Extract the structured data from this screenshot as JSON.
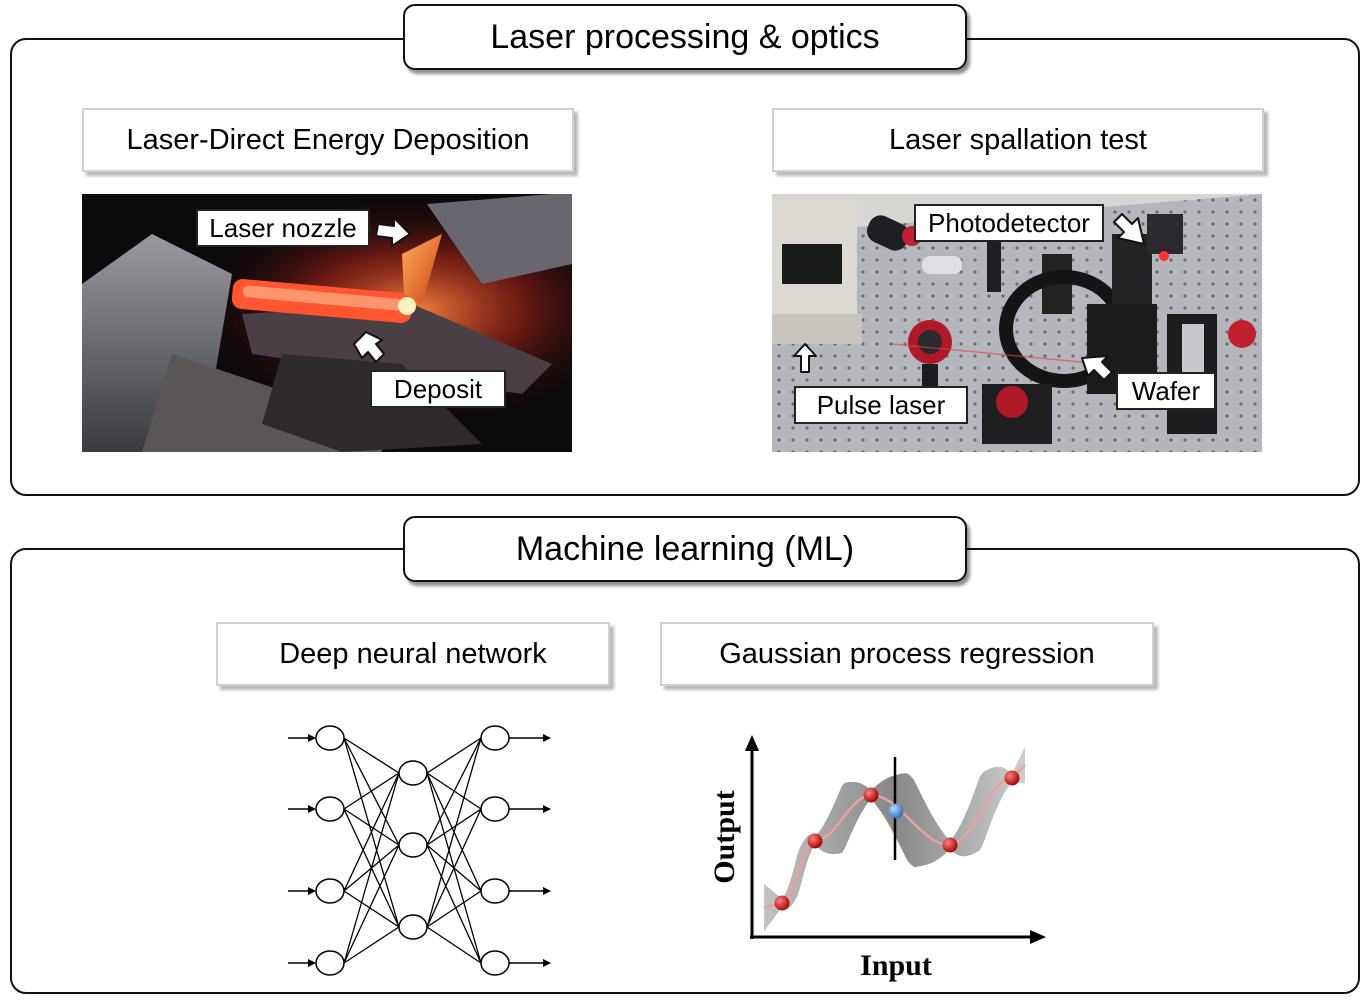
{
  "top_panel": {
    "title": "Laser processing & optics",
    "left": {
      "title": "Laser-Direct Energy Deposition",
      "labels": {
        "nozzle": "Laser nozzle",
        "deposit": "Deposit"
      }
    },
    "right": {
      "title": "Laser spallation test",
      "labels": {
        "photodetector": "Photodetector",
        "pulse_laser": "Pulse laser",
        "wafer": "Wafer"
      }
    }
  },
  "bottom_panel": {
    "title": "Machine learning (ML)",
    "dnn": {
      "title": "Deep neural network",
      "layers": [
        4,
        3,
        4
      ]
    },
    "gpr": {
      "title": "Gaussian process regression",
      "xlabel": "Input",
      "ylabel": "Output",
      "colors": {
        "observed": "#cc1111",
        "predicted": "#4a8fd4",
        "mean_line": "#e8a0a0",
        "band": "#9a9a9a"
      }
    }
  }
}
